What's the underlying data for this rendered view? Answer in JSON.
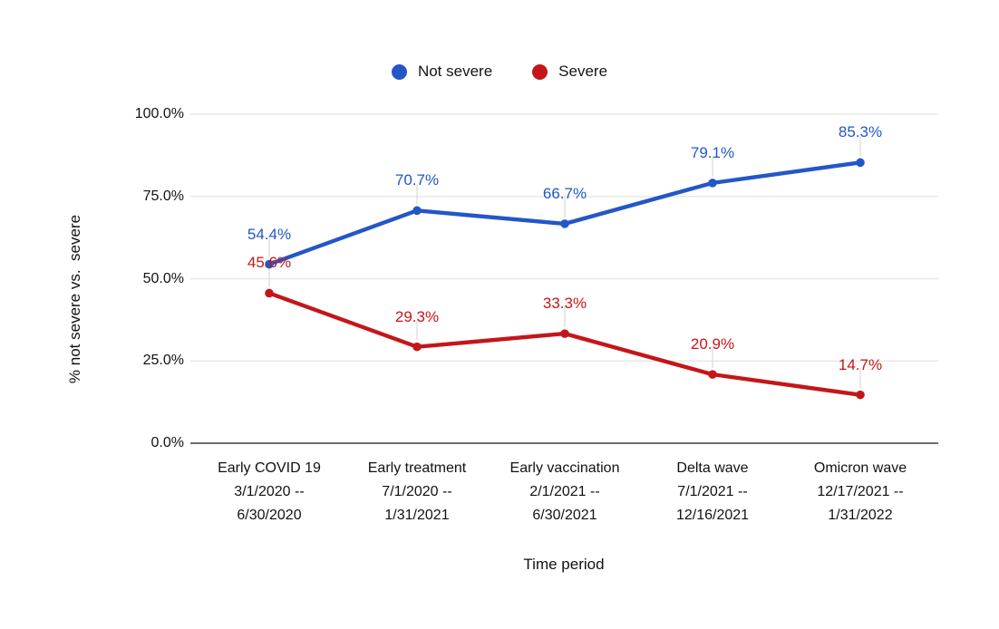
{
  "chart_data": {
    "type": "line",
    "title": "",
    "legend": {
      "position": "top",
      "entries": [
        {
          "label": "Not severe",
          "color": "#2357C7"
        },
        {
          "label": "Severe",
          "color": "#C4161A"
        }
      ]
    },
    "categories": [
      [
        "Early COVID 19",
        "3/1/2020 --",
        "6/30/2020"
      ],
      [
        "Early treatment",
        "7/1/2020 --",
        "1/31/2021"
      ],
      [
        "Early vaccination",
        "2/1/2021 --",
        "6/30/2021"
      ],
      [
        "Delta wave",
        "7/1/2021 --",
        "12/16/2021"
      ],
      [
        "Omicron wave",
        "12/17/2021 --",
        "1/31/2022"
      ]
    ],
    "series": [
      {
        "name": "Not severe",
        "color": "#2357C7",
        "values": [
          54.4,
          70.7,
          66.7,
          79.1,
          85.3
        ],
        "point_labels": [
          "54.4%",
          "70.7%",
          "66.7%",
          "79.1%",
          "85.3%"
        ]
      },
      {
        "name": "Severe",
        "color": "#C4161A",
        "values": [
          45.6,
          29.3,
          33.3,
          20.9,
          14.7
        ],
        "point_labels": [
          "45.6%",
          "29.3%",
          "33.3%",
          "20.9%",
          "14.7%"
        ]
      }
    ],
    "xlabel": "Time period",
    "ylabel": "% not severe vs.  severe",
    "ylim": [
      0,
      100
    ],
    "yticks": [
      {
        "value": 0,
        "label": "0.0%"
      },
      {
        "value": 25,
        "label": "25.0%"
      },
      {
        "value": 50,
        "label": "50.0%"
      },
      {
        "value": 75,
        "label": "75.0%"
      },
      {
        "value": 100,
        "label": "100.0%"
      }
    ],
    "grid": true,
    "colors": {
      "gridline": "#E4E4E4",
      "axis_line": "#3C3C3C",
      "leader_line": "#D8D8D8",
      "background": "#FFFFFF"
    }
  }
}
